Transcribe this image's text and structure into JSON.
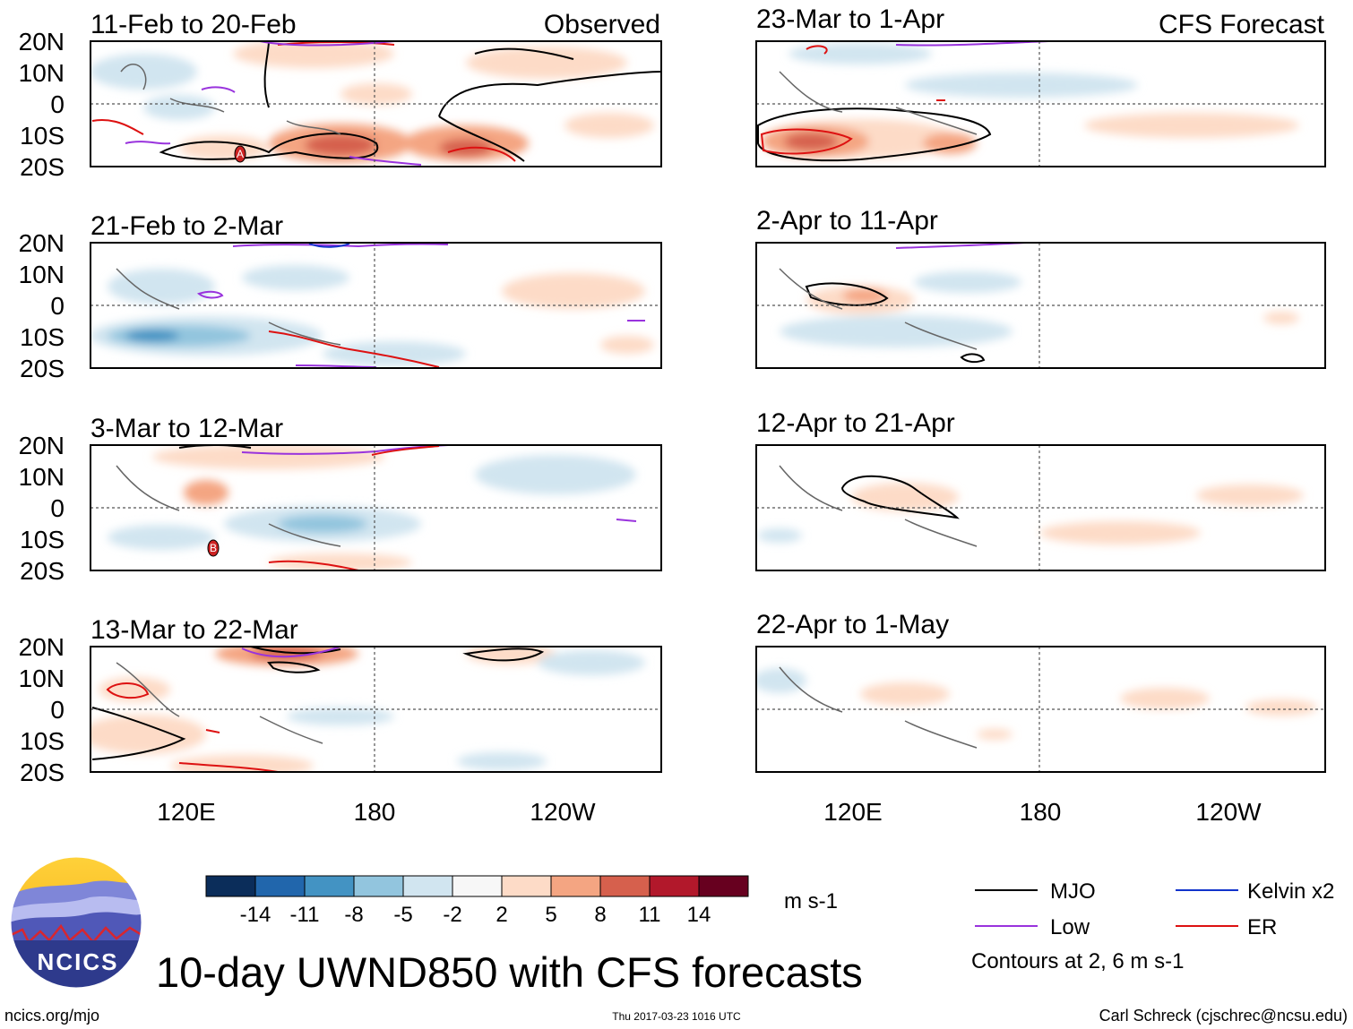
{
  "figure": {
    "title": "10-day UWND850 with CFS forecasts",
    "column_labels": [
      "Observed",
      "CFS Forecast"
    ],
    "lat_labels": [
      "20N",
      "10N",
      "0",
      "10S",
      "20S"
    ],
    "lon_labels": [
      "120E",
      "180",
      "120W"
    ],
    "panels": [
      {
        "period": "11-Feb to 20-Feb",
        "kind": "observed"
      },
      {
        "period": "21-Feb to 2-Mar",
        "kind": "observed"
      },
      {
        "period": "3-Mar to 12-Mar",
        "kind": "observed"
      },
      {
        "period": "13-Mar to 22-Mar",
        "kind": "observed"
      },
      {
        "period": "23-Mar to 1-Apr",
        "kind": "forecast"
      },
      {
        "period": "2-Apr to 11-Apr",
        "kind": "forecast"
      },
      {
        "period": "12-Apr to 21-Apr",
        "kind": "forecast"
      },
      {
        "period": "22-Apr to 1-May",
        "kind": "forecast"
      }
    ],
    "storm_markers": [
      "A",
      "B"
    ]
  },
  "colorbar": {
    "unit": "m s-1",
    "ticks": [
      "-14",
      "-11",
      "-8",
      "-5",
      "-2",
      "2",
      "5",
      "8",
      "11",
      "14"
    ],
    "colors": [
      "#0b2d5a",
      "#2166ac",
      "#4393c3",
      "#92c5de",
      "#d1e5f0",
      "#f7f7f7",
      "#fddbc7",
      "#f4a582",
      "#d6604d",
      "#b2182b",
      "#67001f"
    ]
  },
  "legend": {
    "items": [
      {
        "label": "MJO",
        "color": "#000000"
      },
      {
        "label": "Low",
        "color": "#9933dd"
      },
      {
        "label": "Kelvin x2",
        "color": "#1133cc"
      },
      {
        "label": "ER",
        "color": "#dd1111"
      }
    ],
    "note": "Contours at 2, 6 m s-1"
  },
  "logo": {
    "text": "NCICS"
  },
  "footer": {
    "url": "ncics.org/mjo",
    "timestamp": "Thu 2017-03-23 1016 UTC",
    "credit": "Carl Schreck (cjschrec@ncsu.edu)"
  }
}
